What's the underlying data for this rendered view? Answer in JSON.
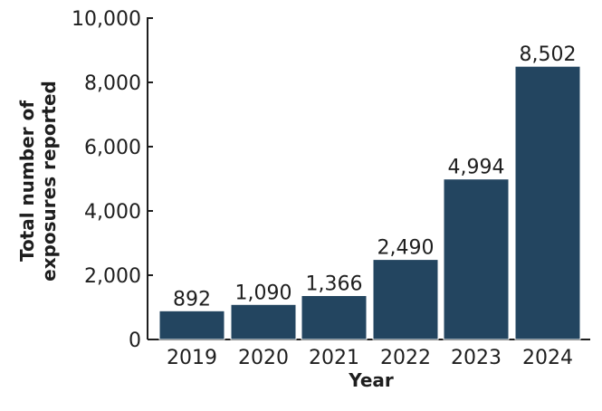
{
  "chart_data": {
    "type": "bar",
    "title": "",
    "xlabel": "Year",
    "ylabel": "Total number of exposures reported",
    "ylabel_lines": [
      "Total number of",
      "exposures reported"
    ],
    "categories": [
      "2019",
      "2020",
      "2021",
      "2022",
      "2023",
      "2024"
    ],
    "values": [
      892,
      1090,
      1366,
      2490,
      4994,
      8502
    ],
    "data_labels": [
      "892",
      "1,090",
      "1,366",
      "2,490",
      "4,994",
      "8,502"
    ],
    "ylim": [
      0,
      10000
    ],
    "yticks": [
      0,
      2000,
      4000,
      6000,
      8000,
      10000
    ],
    "ytick_labels": [
      "0",
      "2,000",
      "4,000",
      "6,000",
      "8,000",
      "10,000"
    ],
    "grid": false,
    "legend": null,
    "colors": {
      "bar": "#234560",
      "axis": "#1e1e1e",
      "text": "#1e1e1e"
    }
  }
}
